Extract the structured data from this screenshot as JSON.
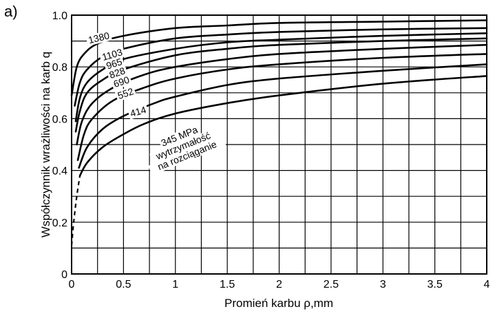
{
  "panel_label": "a)",
  "chart_data": {
    "type": "line",
    "xlabel": "Promień karbu ρ,mm",
    "ylabel": "Współczynnik wrażliwości na karb q",
    "xlim": [
      0,
      4
    ],
    "ylim": [
      0,
      1.0
    ],
    "x_ticks": [
      0,
      0.5,
      1,
      1.5,
      2,
      2.5,
      3,
      3.5,
      4
    ],
    "x_tick_labels": [
      "0",
      "0.5",
      "1",
      "1.5",
      "2",
      "2.5",
      "3",
      "3.5",
      "4"
    ],
    "y_ticks": [
      0,
      0.2,
      0.4,
      0.6,
      0.8,
      1.0
    ],
    "y_tick_labels": [
      "0",
      "0.2",
      "0.4",
      "0.6",
      "0.8",
      "1.0"
    ],
    "grid": true,
    "dashed_segment": {
      "series": "345 MPa",
      "points": [
        [
          0.0,
          0.11
        ],
        [
          0.02,
          0.2
        ],
        [
          0.05,
          0.3
        ],
        [
          0.08,
          0.38
        ]
      ]
    },
    "series": [
      {
        "name": "1380",
        "label_lines": [
          "1380"
        ],
        "label_at": [
          0.27,
          0.9
        ],
        "label_angle": -14,
        "points": [
          [
            0.0,
            0.69
          ],
          [
            0.05,
            0.8
          ],
          [
            0.12,
            0.85
          ],
          [
            0.25,
            0.89
          ],
          [
            0.5,
            0.92
          ],
          [
            1.0,
            0.95
          ],
          [
            1.5,
            0.96
          ],
          [
            2.0,
            0.97
          ],
          [
            3.0,
            0.975
          ],
          [
            4.0,
            0.98
          ]
        ]
      },
      {
        "name": "1103",
        "label_lines": [
          "1103"
        ],
        "label_at": [
          0.4,
          0.835
        ],
        "label_angle": -16,
        "points": [
          [
            0.03,
            0.65
          ],
          [
            0.08,
            0.74
          ],
          [
            0.15,
            0.79
          ],
          [
            0.3,
            0.84
          ],
          [
            0.5,
            0.87
          ],
          [
            1.0,
            0.91
          ],
          [
            1.5,
            0.925
          ],
          [
            2.0,
            0.935
          ],
          [
            3.0,
            0.945
          ],
          [
            4.0,
            0.95
          ]
        ]
      },
      {
        "name": "965",
        "label_lines": [
          "965"
        ],
        "label_at": [
          0.42,
          0.8
        ],
        "label_angle": -18,
        "points": [
          [
            0.04,
            0.59
          ],
          [
            0.08,
            0.68
          ],
          [
            0.15,
            0.74
          ],
          [
            0.3,
            0.79
          ],
          [
            0.5,
            0.83
          ],
          [
            1.0,
            0.87
          ],
          [
            1.5,
            0.895
          ],
          [
            2.0,
            0.905
          ],
          [
            3.0,
            0.92
          ],
          [
            4.0,
            0.93
          ]
        ]
      },
      {
        "name": "828",
        "label_lines": [
          "828"
        ],
        "label_at": [
          0.45,
          0.765
        ],
        "label_angle": -19,
        "points": [
          [
            0.04,
            0.55
          ],
          [
            0.08,
            0.63
          ],
          [
            0.15,
            0.7
          ],
          [
            0.3,
            0.75
          ],
          [
            0.5,
            0.79
          ],
          [
            1.0,
            0.845
          ],
          [
            1.5,
            0.87
          ],
          [
            2.0,
            0.885
          ],
          [
            3.0,
            0.9
          ],
          [
            4.0,
            0.91
          ]
        ]
      },
      {
        "name": "690",
        "label_lines": [
          "690"
        ],
        "label_at": [
          0.49,
          0.73
        ],
        "label_angle": -19,
        "points": [
          [
            0.05,
            0.5
          ],
          [
            0.1,
            0.59
          ],
          [
            0.2,
            0.66
          ],
          [
            0.4,
            0.72
          ],
          [
            0.7,
            0.77
          ],
          [
            1.0,
            0.8
          ],
          [
            1.5,
            0.83
          ],
          [
            2.0,
            0.85
          ],
          [
            3.0,
            0.87
          ],
          [
            4.0,
            0.885
          ]
        ]
      },
      {
        "name": "552",
        "label_lines": [
          "552"
        ],
        "label_at": [
          0.53,
          0.685
        ],
        "label_angle": -19,
        "points": [
          [
            0.06,
            0.44
          ],
          [
            0.12,
            0.54
          ],
          [
            0.2,
            0.6
          ],
          [
            0.4,
            0.67
          ],
          [
            0.7,
            0.72
          ],
          [
            1.0,
            0.755
          ],
          [
            1.5,
            0.79
          ],
          [
            2.0,
            0.81
          ],
          [
            3.0,
            0.835
          ],
          [
            4.0,
            0.85
          ]
        ]
      },
      {
        "name": "414",
        "label_lines": [
          "414"
        ],
        "label_at": [
          0.65,
          0.615
        ],
        "label_angle": -16,
        "points": [
          [
            0.07,
            0.41
          ],
          [
            0.15,
            0.49
          ],
          [
            0.3,
            0.56
          ],
          [
            0.5,
            0.61
          ],
          [
            0.8,
            0.66
          ],
          [
            1.0,
            0.685
          ],
          [
            1.5,
            0.73
          ],
          [
            2.0,
            0.755
          ],
          [
            3.0,
            0.785
          ],
          [
            4.0,
            0.81
          ]
        ]
      },
      {
        "name": "345 MPa",
        "label_lines": [
          "345 MPa",
          "wytrzymałość",
          "na rozciąganie"
        ],
        "label_at": [
          1.05,
          0.52
        ],
        "label_angle": -22,
        "points": [
          [
            0.08,
            0.38
          ],
          [
            0.15,
            0.43
          ],
          [
            0.3,
            0.49
          ],
          [
            0.5,
            0.54
          ],
          [
            0.7,
            0.58
          ],
          [
            1.0,
            0.62
          ],
          [
            1.5,
            0.66
          ],
          [
            2.0,
            0.69
          ],
          [
            3.0,
            0.735
          ],
          [
            4.0,
            0.765
          ]
        ]
      }
    ]
  }
}
